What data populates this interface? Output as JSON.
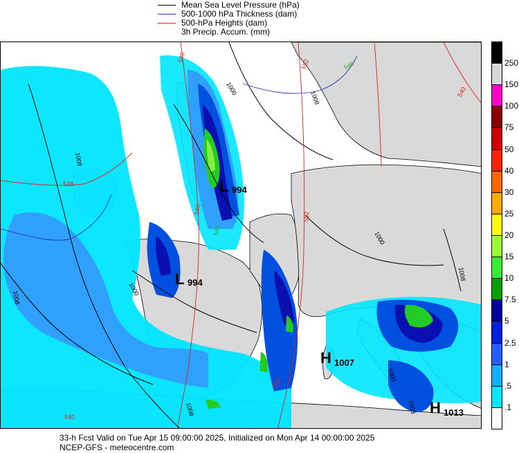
{
  "legend": {
    "items": [
      {
        "label": "Mean Sea Level Pressure (hPa)",
        "color": "#000000"
      },
      {
        "label": "500-1000 hPa Thickness (dam)",
        "color": "#3030c0"
      },
      {
        "label": "500-hPa Heights (dam)",
        "color": "#e02020"
      },
      {
        "label": "3h Precip. Accum. (mm)",
        "color": ""
      }
    ]
  },
  "map": {
    "pressure_centers": [
      {
        "type": "L",
        "value": "994"
      },
      {
        "type": "L",
        "value": "994"
      },
      {
        "type": "H",
        "value": "1007"
      },
      {
        "type": "H",
        "value": "1013"
      }
    ],
    "isobar_labels": [
      "1008",
      "1000",
      "1000",
      "1008",
      "1008",
      "1000",
      "1008",
      "1000",
      "1008",
      "1008"
    ],
    "height_labels": [
      "528",
      "540",
      "540",
      "552",
      "552",
      "552",
      "540",
      "540"
    ],
    "thickness_labels": [
      "546",
      "546"
    ],
    "colors": {
      "land": "#d9d9d9",
      "ocean": "#ffffff",
      "precip_light": "#00e5ff",
      "precip_mid": "#30a0ff",
      "precip_blue": "#0050e0",
      "precip_dark": "#0a10b0",
      "precip_green": "#22cc22",
      "precip_lightgreen": "#88ee44"
    }
  },
  "colorbar": {
    "labels": [
      "250",
      "150",
      "100",
      "75",
      "50",
      "40",
      "30",
      "25",
      "20",
      "15",
      "10",
      "7.5",
      "5",
      "2.5",
      "1",
      ".5",
      ".1"
    ],
    "colors": [
      "#000000",
      "#d8d8d8",
      "#ff00cc",
      "#8b0000",
      "#cc0000",
      "#ff2200",
      "#ff6600",
      "#ffaa00",
      "#ffff00",
      "#99ff33",
      "#33ee33",
      "#00a000",
      "#0000a0",
      "#0020e0",
      "#2060ff",
      "#10b0ff",
      "#00e8ff",
      "#ffffff"
    ]
  },
  "footer": {
    "line1": "33-h Fcst Valid on Tue Apr 15 09:00:00 2025, Initialized on Mon Apr 14 00:00:00 2025",
    "line2": "NCEP-GFS  -  meteocentre.com"
  }
}
